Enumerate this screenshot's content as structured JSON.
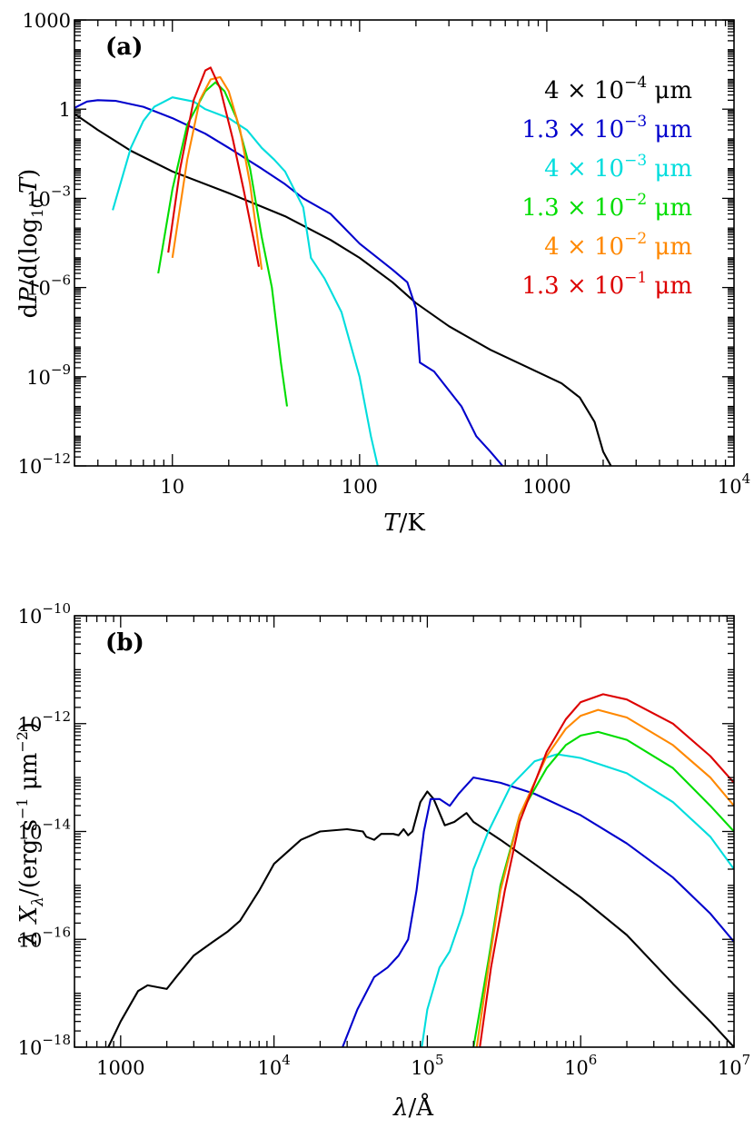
{
  "chart_data": [
    {
      "type": "line",
      "panel_label": "(a)",
      "xlabel": "T/K",
      "ylabel": "dP/d(log10 T)",
      "xscale": "log",
      "yscale": "log",
      "xlim": [
        3,
        10000
      ],
      "ylim": [
        1e-12,
        1000
      ],
      "grid": false,
      "legend_position": "top-right",
      "x_ticks": [
        {
          "value": 10,
          "label": "10"
        },
        {
          "value": 100,
          "label": "100"
        },
        {
          "value": 1000,
          "label": "1000"
        },
        {
          "value": 10000,
          "mantissa": "10",
          "exponent": "4"
        }
      ],
      "y_ticks": [
        {
          "value": 1e-12,
          "mantissa": "10",
          "exponent": "−12"
        },
        {
          "value": 1e-09,
          "mantissa": "10",
          "exponent": "−9"
        },
        {
          "value": 1e-06,
          "mantissa": "10",
          "exponent": "−6"
        },
        {
          "value": 0.001,
          "mantissa": "10",
          "exponent": "−3"
        },
        {
          "value": 1,
          "label": "1"
        },
        {
          "value": 1000,
          "label": "1000"
        }
      ],
      "series": [
        {
          "name": "4 × 10−4 μm",
          "mantissa": "4 × 10",
          "exponent": "−4",
          "unit": " μm",
          "color": "#000000",
          "points": [
            [
              3,
              0.7
            ],
            [
              4,
              0.2
            ],
            [
              6,
              0.04
            ],
            [
              10,
              0.008
            ],
            [
              20,
              0.0015
            ],
            [
              40,
              0.00025
            ],
            [
              70,
              4e-05
            ],
            [
              100,
              1e-05
            ],
            [
              150,
              1.5e-06
            ],
            [
              200,
              3e-07
            ],
            [
              300,
              5e-08
            ],
            [
              500,
              8e-09
            ],
            [
              800,
              2e-09
            ],
            [
              1200,
              6e-10
            ],
            [
              1500,
              2e-10
            ],
            [
              1800,
              3e-11
            ],
            [
              2000,
              3e-12
            ],
            [
              2200,
              1e-12
            ]
          ]
        },
        {
          "name": "1.3 × 10−3 μm",
          "mantissa": "1.3 × 10",
          "exponent": "−3",
          "unit": " μm",
          "color": "#0000cc",
          "points": [
            [
              3,
              1.1
            ],
            [
              3.5,
              1.8
            ],
            [
              4,
              2
            ],
            [
              5,
              1.9
            ],
            [
              7,
              1.2
            ],
            [
              10,
              0.5
            ],
            [
              15,
              0.15
            ],
            [
              20,
              0.05
            ],
            [
              30,
              0.01
            ],
            [
              40,
              0.003
            ],
            [
              50,
              0.001
            ],
            [
              70,
              0.0003
            ],
            [
              100,
              3e-05
            ],
            [
              150,
              4e-06
            ],
            [
              180,
              1.5e-06
            ],
            [
              200,
              2e-07
            ],
            [
              210,
              3e-09
            ],
            [
              250,
              1.5e-09
            ],
            [
              350,
              1e-10
            ],
            [
              420,
              1e-11
            ],
            [
              500,
              3e-12
            ],
            [
              580,
              1e-12
            ]
          ]
        },
        {
          "name": "4 × 10−3 μm",
          "mantissa": "4 × 10",
          "exponent": "−3",
          "unit": " μm",
          "color": "#00dddd",
          "points": [
            [
              4.8,
              0.0004
            ],
            [
              6,
              0.05
            ],
            [
              7,
              0.4
            ],
            [
              8,
              1.2
            ],
            [
              10,
              2.5
            ],
            [
              13,
              1.8
            ],
            [
              15,
              1
            ],
            [
              20,
              0.5
            ],
            [
              25,
              0.2
            ],
            [
              30,
              0.05
            ],
            [
              35,
              0.02
            ],
            [
              40,
              0.008
            ],
            [
              50,
              0.0005
            ],
            [
              55,
              1e-05
            ],
            [
              65,
              2e-06
            ],
            [
              80,
              1.5e-07
            ],
            [
              100,
              1e-09
            ],
            [
              115,
              1e-11
            ],
            [
              125,
              1e-12
            ]
          ]
        },
        {
          "name": "1.3 × 10−2 μm",
          "mantissa": "1.3 × 10",
          "exponent": "−2",
          "unit": " μm",
          "color": "#00dd00",
          "points": [
            [
              8.4,
              3e-06
            ],
            [
              10,
              0.002
            ],
            [
              12,
              0.3
            ],
            [
              15,
              4
            ],
            [
              17,
              8
            ],
            [
              19,
              4
            ],
            [
              22,
              0.5
            ],
            [
              26,
              0.01
            ],
            [
              30,
              5e-05
            ],
            [
              34,
              1e-06
            ],
            [
              38,
              3e-09
            ],
            [
              41,
              1e-10
            ]
          ]
        },
        {
          "name": "4 × 10−2 μm",
          "mantissa": "4 × 10",
          "exponent": "−2",
          "unit": " μm",
          "color": "#ff8800",
          "points": [
            [
              10,
              1e-05
            ],
            [
              12,
              0.02
            ],
            [
              14,
              2
            ],
            [
              16,
              10
            ],
            [
              18,
              12
            ],
            [
              20,
              4
            ],
            [
              23,
              0.2
            ],
            [
              26,
              0.003
            ],
            [
              29,
              2e-05
            ],
            [
              30,
              4e-06
            ]
          ]
        },
        {
          "name": "1.3 × 10−1 μm",
          "mantissa": "1.3 × 10",
          "exponent": "−1",
          "unit": " μm",
          "color": "#dd0000",
          "points": [
            [
              9.5,
              1.5e-05
            ],
            [
              11,
              0.01
            ],
            [
              13,
              2
            ],
            [
              15,
              20
            ],
            [
              16,
              25
            ],
            [
              18,
              5
            ],
            [
              21,
              0.1
            ],
            [
              24,
              0.002
            ],
            [
              27,
              5e-05
            ],
            [
              29,
              5e-06
            ]
          ]
        }
      ]
    },
    {
      "type": "line",
      "panel_label": "(b)",
      "xlabel": "λ/Å",
      "ylabel": "λ Xλ /(erg s−1 μm−2)",
      "xscale": "log",
      "yscale": "log",
      "xlim": [
        500,
        10000000
      ],
      "ylim": [
        1e-18,
        1e-10
      ],
      "grid": false,
      "x_ticks": [
        {
          "value": 1000,
          "label": "1000"
        },
        {
          "value": 10000,
          "mantissa": "10",
          "exponent": "4"
        },
        {
          "value": 100000,
          "mantissa": "10",
          "exponent": "5"
        },
        {
          "value": 1000000,
          "mantissa": "10",
          "exponent": "6"
        },
        {
          "value": 10000000,
          "mantissa": "10",
          "exponent": "7"
        }
      ],
      "y_ticks": [
        {
          "value": 1e-18,
          "mantissa": "10",
          "exponent": "−18"
        },
        {
          "value": 1e-16,
          "mantissa": "10",
          "exponent": "−16"
        },
        {
          "value": 1e-14,
          "mantissa": "10",
          "exponent": "−14"
        },
        {
          "value": 1e-12,
          "mantissa": "10",
          "exponent": "−12"
        },
        {
          "value": 1e-10,
          "mantissa": "10",
          "exponent": "−10"
        }
      ],
      "series": [
        {
          "color": "#000000",
          "points": [
            [
              830,
              1e-18
            ],
            [
              1000,
              3e-18
            ],
            [
              1300,
              1.1e-17
            ],
            [
              1500,
              1.4e-17
            ],
            [
              2000,
              1.2e-17
            ],
            [
              2300,
              2e-17
            ],
            [
              3000,
              5e-17
            ],
            [
              4000,
              9e-17
            ],
            [
              5000,
              1.4e-16
            ],
            [
              6000,
              2.2e-16
            ],
            [
              8000,
              8e-16
            ],
            [
              10000,
              2.5e-15
            ],
            [
              15000,
              7e-15
            ],
            [
              20000,
              1e-14
            ],
            [
              30000,
              1.1e-14
            ],
            [
              38000,
              1e-14
            ],
            [
              40000,
              8e-15
            ],
            [
              45000,
              7e-15
            ],
            [
              50000,
              9e-15
            ],
            [
              60000,
              9e-15
            ],
            [
              65000,
              8.5e-15
            ],
            [
              70000,
              1.1e-14
            ],
            [
              75000,
              8.5e-15
            ],
            [
              80000,
              1e-14
            ],
            [
              90000,
              3.5e-14
            ],
            [
              100000,
              5.5e-14
            ],
            [
              110000,
              4e-14
            ],
            [
              130000,
              1.3e-14
            ],
            [
              150000,
              1.5e-14
            ],
            [
              180000,
              2.2e-14
            ],
            [
              200000,
              1.5e-14
            ],
            [
              300000,
              7e-15
            ],
            [
              500000,
              2.5e-15
            ],
            [
              1000000,
              6e-16
            ],
            [
              2000000,
              1.2e-16
            ],
            [
              4000000,
              1.5e-17
            ],
            [
              7000000,
              3e-18
            ],
            [
              10000000,
              1e-18
            ]
          ]
        },
        {
          "color": "#0000cc",
          "points": [
            [
              28000,
              1e-18
            ],
            [
              35000,
              5e-18
            ],
            [
              45000,
              2e-17
            ],
            [
              55000,
              3e-17
            ],
            [
              65000,
              5e-17
            ],
            [
              75000,
              1e-16
            ],
            [
              85000,
              8e-16
            ],
            [
              95000,
              1e-14
            ],
            [
              105000,
              4e-14
            ],
            [
              120000,
              4e-14
            ],
            [
              140000,
              3e-14
            ],
            [
              160000,
              5e-14
            ],
            [
              200000,
              1e-13
            ],
            [
              300000,
              8e-14
            ],
            [
              500000,
              5e-14
            ],
            [
              1000000,
              2e-14
            ],
            [
              2000000,
              6e-15
            ],
            [
              4000000,
              1.4e-15
            ],
            [
              7000000,
              3e-16
            ],
            [
              10000000,
              9e-17
            ]
          ]
        },
        {
          "color": "#00dddd",
          "points": [
            [
              92000,
              1e-18
            ],
            [
              100000,
              5e-18
            ],
            [
              120000,
              3e-17
            ],
            [
              140000,
              6e-17
            ],
            [
              170000,
              3e-16
            ],
            [
              200000,
              2e-15
            ],
            [
              250000,
              1e-14
            ],
            [
              350000,
              7e-14
            ],
            [
              500000,
              2e-13
            ],
            [
              700000,
              2.7e-13
            ],
            [
              1000000,
              2.3e-13
            ],
            [
              2000000,
              1.2e-13
            ],
            [
              4000000,
              3.5e-14
            ],
            [
              7000000,
              8e-15
            ],
            [
              10000000,
              2e-15
            ]
          ]
        },
        {
          "color": "#00dd00",
          "points": [
            [
              200000,
              1e-18
            ],
            [
              250000,
              4e-17
            ],
            [
              300000,
              1e-15
            ],
            [
              400000,
              2e-14
            ],
            [
              600000,
              1.5e-13
            ],
            [
              800000,
              4e-13
            ],
            [
              1000000,
              6e-13
            ],
            [
              1300000,
              7e-13
            ],
            [
              2000000,
              5e-13
            ],
            [
              4000000,
              1.5e-13
            ],
            [
              7000000,
              3e-14
            ],
            [
              10000000,
              1e-14
            ]
          ]
        },
        {
          "color": "#ff8800",
          "points": [
            [
              210000,
              1e-18
            ],
            [
              250000,
              3e-17
            ],
            [
              300000,
              8e-16
            ],
            [
              400000,
              2e-14
            ],
            [
              600000,
              2.5e-13
            ],
            [
              800000,
              8e-13
            ],
            [
              1000000,
              1.4e-12
            ],
            [
              1300000,
              1.8e-12
            ],
            [
              2000000,
              1.3e-12
            ],
            [
              4000000,
              4e-13
            ],
            [
              7000000,
              1e-13
            ],
            [
              10000000,
              3e-14
            ]
          ]
        },
        {
          "color": "#dd0000",
          "points": [
            [
              220000,
              1e-18
            ],
            [
              260000,
              3e-17
            ],
            [
              320000,
              8e-16
            ],
            [
              400000,
              1.5e-14
            ],
            [
              600000,
              3e-13
            ],
            [
              800000,
              1.2e-12
            ],
            [
              1000000,
              2.5e-12
            ],
            [
              1400000,
              3.5e-12
            ],
            [
              2000000,
              2.8e-12
            ],
            [
              4000000,
              1e-12
            ],
            [
              7000000,
              2.5e-13
            ],
            [
              10000000,
              8e-14
            ]
          ]
        }
      ]
    }
  ]
}
